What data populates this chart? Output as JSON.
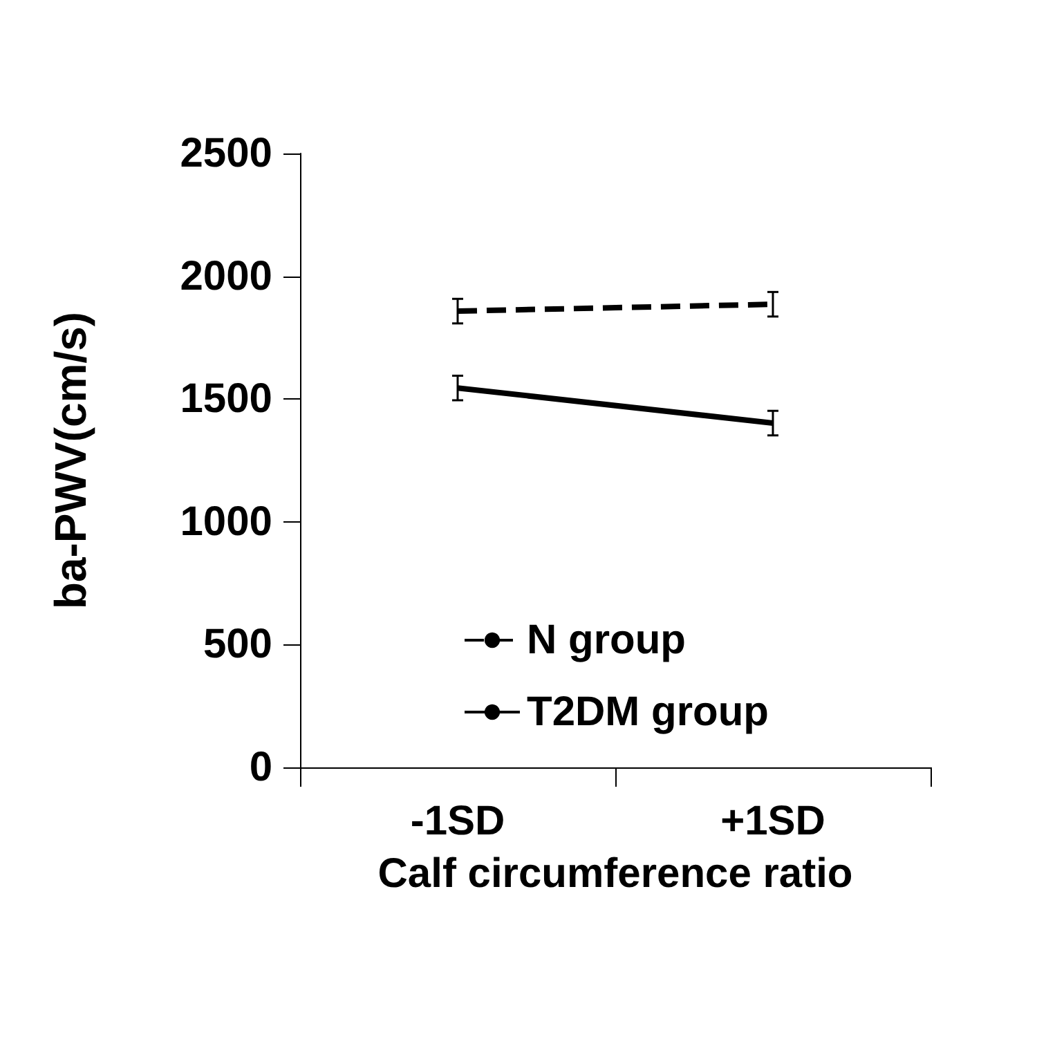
{
  "chart_data": {
    "type": "line",
    "xlabel": "Calf circumference ratio",
    "ylabel": "ba-PWV(cm/s)",
    "categories": [
      "-1SD",
      "+1SD"
    ],
    "series": [
      {
        "name": "N group",
        "color": "#000000",
        "values": [
          1858,
          1886
        ],
        "errors": [
          50,
          50
        ],
        "line_style": "dashed"
      },
      {
        "name": "T2DM group",
        "color": "#000000",
        "values": [
          1545,
          1402
        ],
        "errors": [
          50,
          50
        ],
        "line_style": "solid"
      }
    ],
    "ylim": [
      0,
      2500
    ],
    "yticks": [
      0,
      500,
      1000,
      1500,
      2000,
      2500
    ],
    "grid": false,
    "legend": "bottom",
    "marker": "none"
  }
}
